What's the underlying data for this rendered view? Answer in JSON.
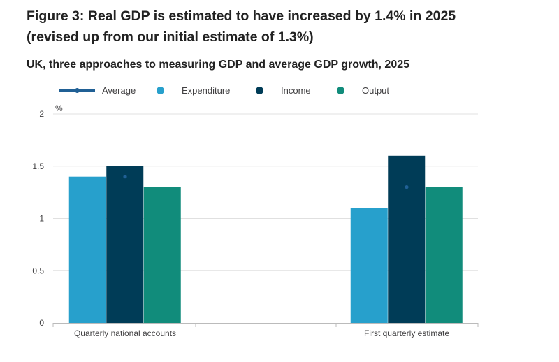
{
  "title_lines": [
    "Figure 3: Real GDP is estimated to have increased by 1.4% in 2025",
    "(revised up from our initial estimate of 1.3%)"
  ],
  "subtitle": "UK, three approaches to measuring GDP and average GDP growth, 2025",
  "colors": {
    "average": "#206095",
    "expenditure": "#27a0cc",
    "income": "#003c57",
    "output": "#118c7b",
    "grid": "#e0e0e0",
    "axis": "#bbbbbb"
  },
  "chart_data": {
    "type": "bar",
    "ylabel": "%",
    "ylim": [
      0,
      2
    ],
    "yticks": [
      "0",
      "0.5",
      "1",
      "1.5",
      "2"
    ],
    "grid": true,
    "legend_position": "top",
    "categories": [
      "Quarterly national accounts",
      "First quarterly estimate"
    ],
    "series": [
      {
        "name": "Expenditure",
        "type": "bar",
        "values": [
          1.4,
          1.1
        ]
      },
      {
        "name": "Income",
        "type": "bar",
        "values": [
          1.5,
          1.6
        ]
      },
      {
        "name": "Output",
        "type": "bar",
        "values": [
          1.3,
          1.3
        ]
      },
      {
        "name": "Average",
        "type": "point",
        "values": [
          1.4,
          1.3
        ]
      }
    ]
  }
}
